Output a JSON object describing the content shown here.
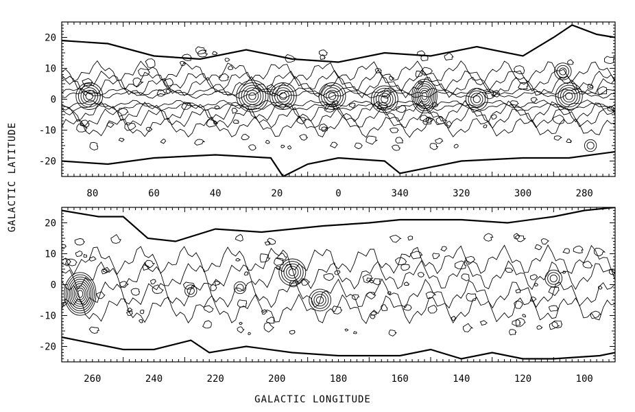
{
  "chart_data": [
    {
      "type": "contour",
      "panel": "top",
      "x_ticks": [
        "80",
        "60",
        "40",
        "20",
        "0",
        "340",
        "320",
        "300",
        "280"
      ],
      "y_ticks": [
        "20",
        "10",
        "0",
        "-10",
        "-20"
      ],
      "xlim": [
        90,
        -90
      ],
      "ylim": [
        -25,
        25
      ],
      "x_is_wrapped_longitude": true,
      "boundary_top": [
        [
          90,
          19
        ],
        [
          75,
          18
        ],
        [
          60,
          14
        ],
        [
          45,
          13
        ],
        [
          30,
          16
        ],
        [
          15,
          13
        ],
        [
          0,
          12
        ],
        [
          -15,
          15
        ],
        [
          -30,
          14
        ],
        [
          -45,
          17
        ],
        [
          -60,
          14
        ],
        [
          -70,
          20
        ],
        [
          -76,
          24
        ],
        [
          -84,
          21
        ],
        [
          -90,
          20
        ]
      ],
      "boundary_bottom": [
        [
          90,
          -20
        ],
        [
          75,
          -21
        ],
        [
          60,
          -19
        ],
        [
          40,
          -18
        ],
        [
          22,
          -19
        ],
        [
          18,
          -25
        ],
        [
          10,
          -21
        ],
        [
          0,
          -19
        ],
        [
          -15,
          -20
        ],
        [
          -20,
          -24
        ],
        [
          -40,
          -20
        ],
        [
          -60,
          -19
        ],
        [
          -75,
          -19
        ],
        [
          -90,
          -17
        ]
      ],
      "peaks": [
        {
          "l": 81,
          "b": 1,
          "level": 5
        },
        {
          "l": 28,
          "b": 1,
          "level": 6
        },
        {
          "l": 18,
          "b": 1,
          "level": 5
        },
        {
          "l": 2,
          "b": 1,
          "level": 5
        },
        {
          "l": -15,
          "b": 0,
          "level": 5
        },
        {
          "l": -28,
          "b": 1,
          "level": 7
        },
        {
          "l": -45,
          "b": 0,
          "level": 4
        },
        {
          "l": -73,
          "b": 9,
          "level": 3
        },
        {
          "l": -75,
          "b": 1,
          "level": 5
        },
        {
          "l": -82,
          "b": -15,
          "level": 2
        }
      ]
    },
    {
      "type": "contour",
      "panel": "bottom",
      "x_ticks": [
        "260",
        "240",
        "220",
        "200",
        "180",
        "160",
        "140",
        "120",
        "100"
      ],
      "y_ticks": [
        "20",
        "10",
        "0",
        "-10",
        "-20"
      ],
      "xlim": [
        270,
        90
      ],
      "ylim": [
        -25,
        25
      ],
      "boundary_top": [
        [
          270,
          24
        ],
        [
          258,
          22
        ],
        [
          250,
          22
        ],
        [
          242,
          15
        ],
        [
          233,
          14
        ],
        [
          220,
          18
        ],
        [
          205,
          17
        ],
        [
          185,
          19
        ],
        [
          170,
          20
        ],
        [
          160,
          21
        ],
        [
          140,
          21
        ],
        [
          125,
          20
        ],
        [
          110,
          22
        ],
        [
          100,
          24
        ],
        [
          90,
          25
        ]
      ],
      "boundary_bottom": [
        [
          270,
          -17
        ],
        [
          260,
          -19
        ],
        [
          250,
          -21
        ],
        [
          240,
          -21
        ],
        [
          228,
          -18
        ],
        [
          222,
          -22
        ],
        [
          210,
          -20
        ],
        [
          195,
          -22
        ],
        [
          180,
          -23
        ],
        [
          160,
          -23
        ],
        [
          150,
          -21
        ],
        [
          140,
          -24
        ],
        [
          130,
          -22
        ],
        [
          120,
          -24
        ],
        [
          110,
          -24
        ],
        [
          95,
          -23
        ],
        [
          90,
          -22
        ]
      ],
      "peaks": [
        {
          "l": 264,
          "b": -3,
          "level": 9
        },
        {
          "l": 195,
          "b": 4,
          "level": 5
        },
        {
          "l": 186,
          "b": -5,
          "level": 4
        },
        {
          "l": 110,
          "b": 2,
          "level": 3
        },
        {
          "l": 212,
          "b": -1,
          "level": 2
        },
        {
          "l": 228,
          "b": -2,
          "level": 2
        }
      ]
    }
  ],
  "labels": {
    "y_axis": "GALACTIC LATITUDE",
    "x_axis": "GALACTIC LONGITUDE"
  }
}
